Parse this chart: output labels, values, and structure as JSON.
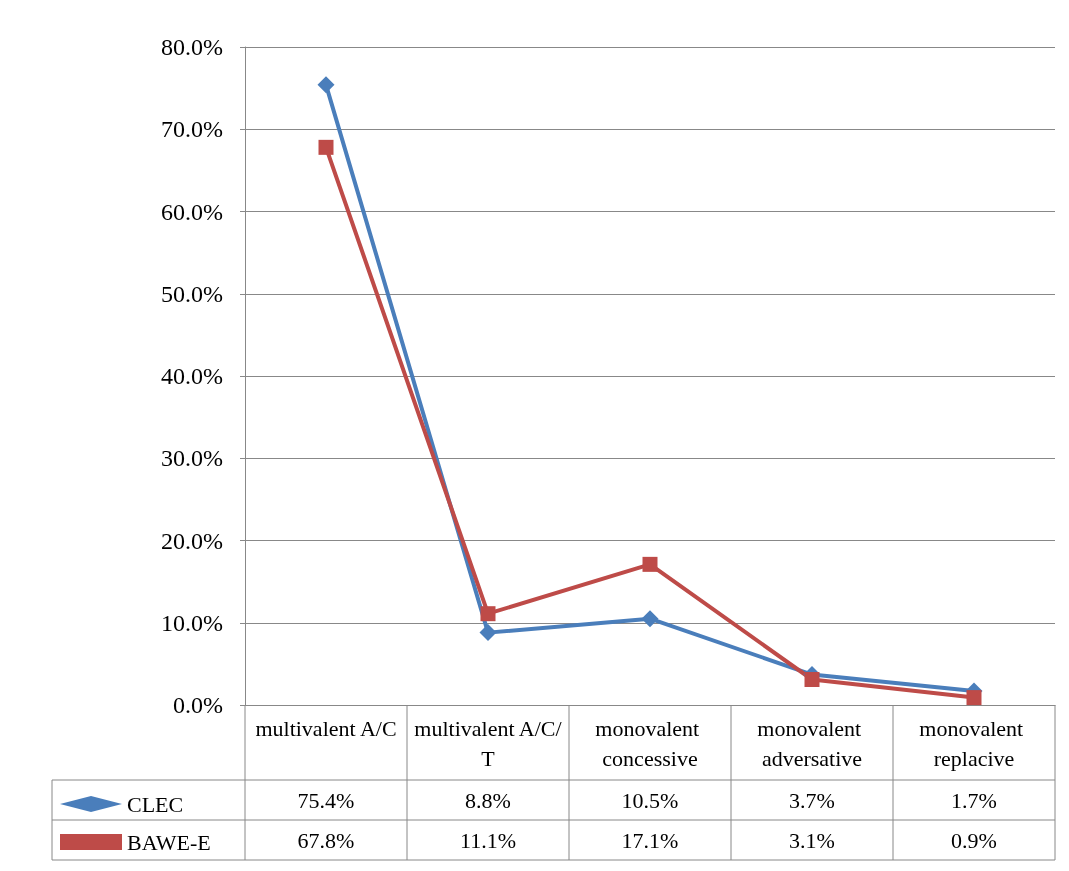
{
  "chart_data": {
    "type": "line",
    "categories": [
      "multivalent A/C",
      "multivalent A/C/T",
      "monovalent concessive",
      "monovalent adversative",
      "monovalent replacive"
    ],
    "series": [
      {
        "name": "CLEC",
        "color": "#4a7ebb",
        "marker": "diamond",
        "values": [
          75.4,
          8.8,
          10.5,
          3.7,
          1.7
        ],
        "value_labels": [
          "75.4%",
          "8.8%",
          "10.5%",
          "3.7%",
          "1.7%"
        ]
      },
      {
        "name": "BAWE-E",
        "color": "#be4b48",
        "marker": "square",
        "values": [
          67.8,
          11.1,
          17.1,
          3.1,
          0.9
        ],
        "value_labels": [
          "67.8%",
          "11.1%",
          "17.1%",
          "3.1%",
          "0.9%"
        ]
      }
    ],
    "ylim": [
      0,
      80
    ],
    "yticks": [
      {
        "value": 0,
        "label": "0.0%"
      },
      {
        "value": 10,
        "label": "10.0%"
      },
      {
        "value": 20,
        "label": "20.0%"
      },
      {
        "value": 30,
        "label": "30.0%"
      },
      {
        "value": 40,
        "label": "40.0%"
      },
      {
        "value": 50,
        "label": "50.0%"
      },
      {
        "value": 60,
        "label": "60.0%"
      },
      {
        "value": 70,
        "label": "70.0%"
      },
      {
        "value": 80,
        "label": "80.0%"
      }
    ],
    "grid": "y",
    "legend": "bottom left",
    "line_style": "solid"
  }
}
